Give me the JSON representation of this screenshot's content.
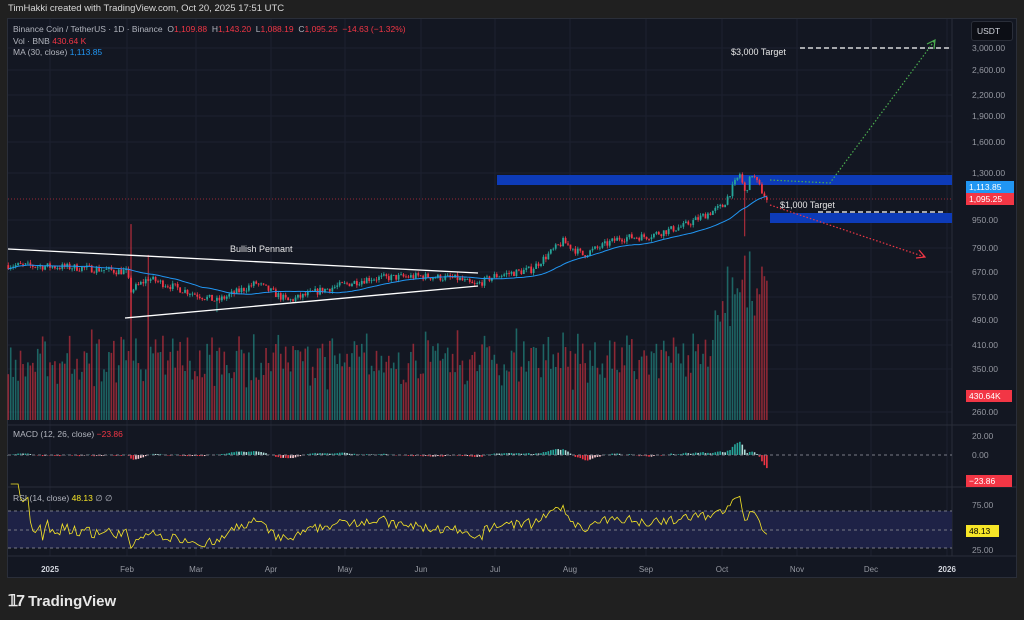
{
  "credit": "TimHakki created with TradingView.com, Oct 20, 2025 17:51 UTC",
  "legend": {
    "symbol": "Binance Coin / TetherUS · 1D · Binance",
    "o_label": "O",
    "o": "1,109.88",
    "h_label": "H",
    "h": "1,143.20",
    "l_label": "L",
    "l": "1,088.19",
    "c_label": "C",
    "c": "1,095.25",
    "change": "−14.63 (−1.32%)",
    "vol_label": "Vol · BNB",
    "vol": "430.64 K",
    "ma_label": "MA (30, close)",
    "ma": "1,113.85",
    "macd_label": "MACD (12, 26, close)",
    "macd": "−23.86",
    "rsi_label": "RSI (14, close)",
    "rsi": "48.13",
    "rsi_icons": "∅ ∅"
  },
  "currency": "USDT",
  "price_axis": [
    "3,000.00",
    "2,600.00",
    "2,200.00",
    "1,900.00",
    "1,600.00",
    "1,300.00",
    "950.00",
    "790.00",
    "670.00",
    "570.00",
    "490.00",
    "410.00",
    "350.00",
    "260.00"
  ],
  "price_tags": {
    "ma": "1,113.85",
    "close": "1,095.25",
    "volume": "430.64K",
    "macd": "−23.86",
    "rsi": "48.13"
  },
  "macd_axis": [
    "20.00",
    "0.00"
  ],
  "rsi_axis": [
    "75.00",
    "25.00"
  ],
  "time_axis": [
    "2025",
    "Feb",
    "Mar",
    "Apr",
    "May",
    "Jun",
    "Jul",
    "Aug",
    "Sep",
    "Oct",
    "Nov",
    "Dec",
    "2026"
  ],
  "annotations": {
    "pennant": "Bullish Pennant",
    "target_3000": "$3,000 Target",
    "target_1000": "$1,000 Target"
  },
  "brand": "TradingView",
  "colors": {
    "up": "#26a69a",
    "down": "#f23645",
    "ma": "#2196f3",
    "zone": "#0d3bb8",
    "rsi": "#f7e627"
  },
  "price_path": [
    [
      -17,
      710
    ],
    [
      10,
      700
    ],
    [
      31,
      680
    ],
    [
      33,
      600
    ],
    [
      40,
      650
    ],
    [
      58,
      590
    ],
    [
      68,
      560
    ],
    [
      84,
      630
    ],
    [
      97,
      560
    ],
    [
      110,
      600
    ],
    [
      130,
      650
    ],
    [
      151,
      660
    ],
    [
      166,
      650
    ],
    [
      173,
      620
    ],
    [
      181,
      660
    ],
    [
      196,
      690
    ],
    [
      209,
      830
    ],
    [
      217,
      760
    ],
    [
      232,
      850
    ],
    [
      243,
      860
    ],
    [
      258,
      920
    ],
    [
      268,
      1000
    ],
    [
      274,
      1050
    ],
    [
      281,
      1300
    ],
    [
      283,
      1150
    ],
    [
      286,
      1300
    ],
    [
      292,
      1095
    ]
  ]
}
